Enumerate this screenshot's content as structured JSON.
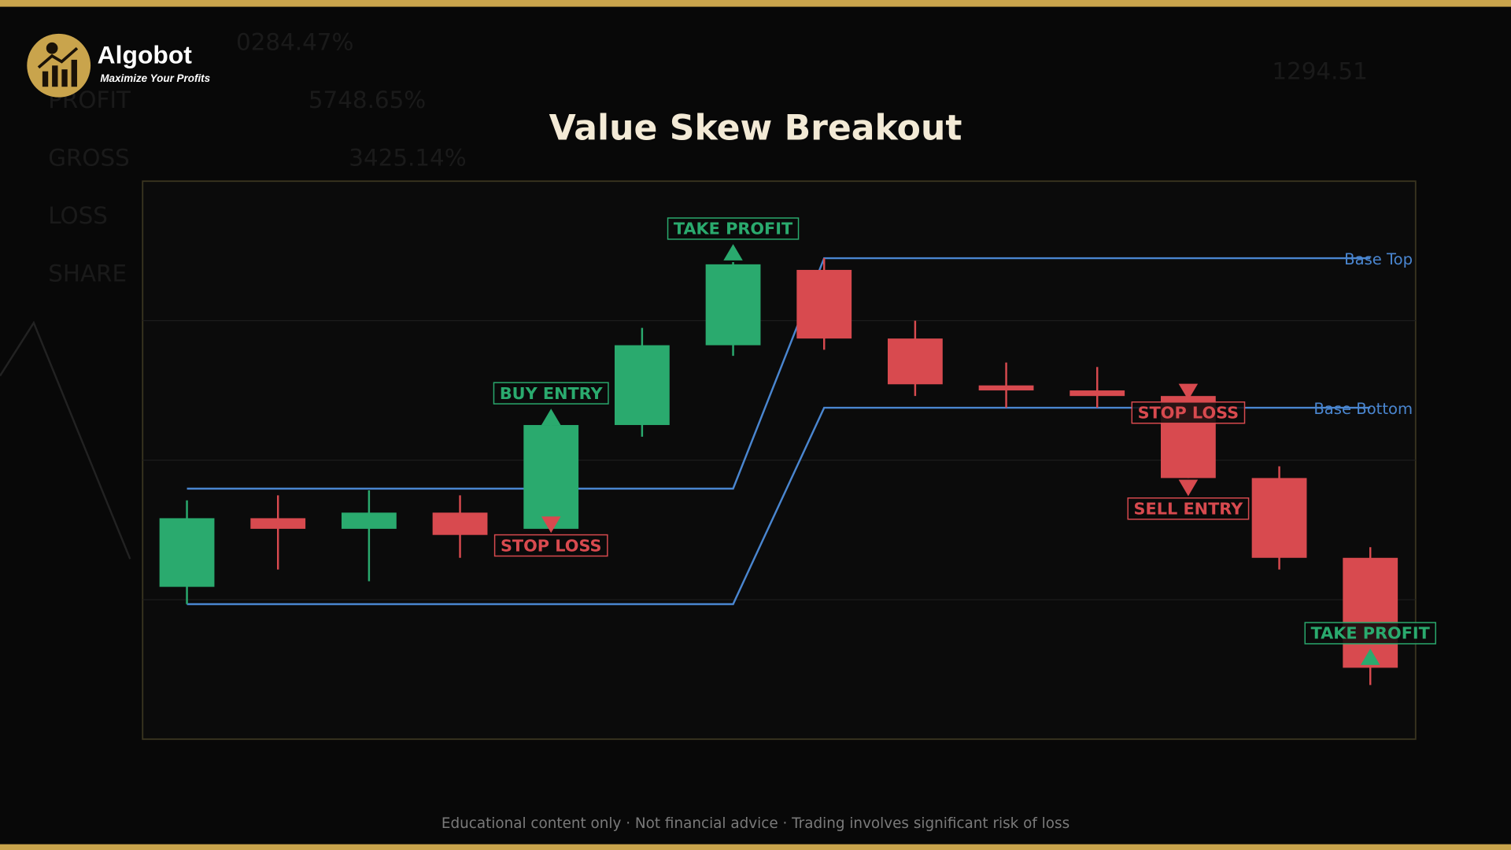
{
  "brand": {
    "name": "Algobot",
    "tagline": "Maximize Your Profits"
  },
  "backdrop": [
    "PROFIT",
    "5748.65%",
    "GROSS",
    "3425.14%",
    "LOSS",
    "SHARE",
    "0284.47%",
    "1294.51"
  ],
  "footer": "Educational content only  ·  Not financial advice  ·  Trading involves significant risk of loss",
  "chart_data": {
    "type": "candlestick",
    "title": "Value Skew Breakout",
    "ylim": [
      0,
      100
    ],
    "yticks": [
      25,
      50,
      75
    ],
    "grid": true,
    "up_color": "#2aaa6e",
    "down_color": "#d84a4f",
    "open": [
      27.3,
      39.6,
      37.7,
      40.6,
      37.7,
      56.3,
      70.6,
      84.1,
      71.8,
      63.4,
      62.5,
      61.5,
      46.8,
      32.5
    ],
    "high": [
      42.8,
      43.7,
      44.6,
      43.7,
      56.3,
      73.7,
      85.5,
      86.2,
      75.0,
      67.5,
      66.7,
      61.5,
      48.9,
      34.4
    ],
    "low": [
      24.2,
      30.4,
      28.3,
      32.5,
      37.7,
      54.2,
      68.7,
      69.8,
      61.5,
      59.4,
      59.4,
      46.8,
      30.4,
      9.7
    ],
    "close": [
      39.6,
      37.7,
      40.6,
      36.6,
      56.3,
      70.6,
      85.1,
      71.8,
      63.6,
      62.5,
      61.5,
      46.8,
      32.5,
      12.8
    ],
    "series": [
      {
        "name": "Base Top",
        "color": "#4a86d0",
        "values": [
          44.9,
          44.9,
          44.9,
          44.9,
          44.9,
          44.9,
          44.9,
          86.2,
          86.2,
          86.2,
          86.2,
          86.2,
          86.2,
          86.2
        ]
      },
      {
        "name": "Base Bottom",
        "color": "#4a86d0",
        "values": [
          24.2,
          24.2,
          24.2,
          24.2,
          24.2,
          24.2,
          24.2,
          59.4,
          59.4,
          59.4,
          59.4,
          59.4,
          59.4,
          59.4
        ]
      }
    ],
    "annotations": [
      {
        "text": "BUY ENTRY",
        "index": 4,
        "value": 56.3,
        "direction": "up",
        "color": "#2aaa6e"
      },
      {
        "text": "STOP LOSS",
        "index": 4,
        "value": 39.9,
        "direction": "down",
        "color": "#d84a4f"
      },
      {
        "text": "TAKE PROFIT",
        "index": 6,
        "value": 85.8,
        "direction": "up",
        "color": "#2aaa6e"
      },
      {
        "text": "STOP LOSS",
        "index": 11,
        "value": 63.7,
        "direction": "down",
        "color": "#d84a4f"
      },
      {
        "text": "SELL ENTRY",
        "index": 11,
        "value": 46.5,
        "direction": "down",
        "color": "#d84a4f"
      },
      {
        "text": "TAKE PROFIT",
        "index": 13,
        "value": 13.3,
        "direction": "up",
        "color": "#2aaa6e"
      }
    ]
  }
}
